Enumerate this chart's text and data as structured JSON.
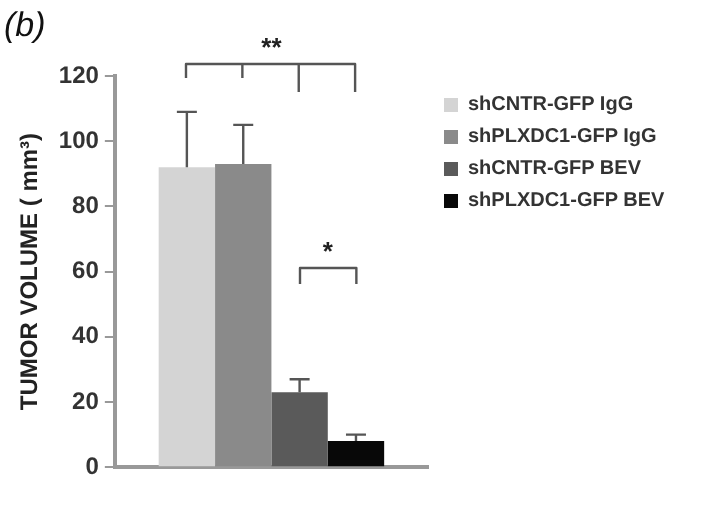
{
  "chart_data": {
    "type": "bar",
    "title": "(b)",
    "ylabel": "TUMOR VOLUME ( mm³)",
    "categories": [
      null
    ],
    "series": [
      {
        "name": "shCNTR-GFP IgG",
        "color": "#d4d4d4",
        "values": [
          92
        ],
        "errors": [
          [
            92,
            109
          ]
        ]
      },
      {
        "name": "shPLXDC1-GFP IgG",
        "color": "#8a8a8a",
        "values": [
          93
        ],
        "errors": [
          [
            93,
            105
          ]
        ]
      },
      {
        "name": "shCNTR-GFP BEV",
        "color": "#5a5a5a",
        "values": [
          23
        ],
        "errors": [
          [
            23,
            27
          ]
        ]
      },
      {
        "name": "shPLXDC1-GFP BEV",
        "color": "#080808",
        "values": [
          8
        ],
        "errors": [
          [
            8,
            10
          ]
        ]
      }
    ],
    "annotations": [
      "**",
      "*"
    ],
    "ylim": [
      0,
      120
    ],
    "yticks": [
      0,
      20,
      40,
      60,
      80,
      100,
      120
    ],
    "grid": false,
    "legend": "right"
  }
}
